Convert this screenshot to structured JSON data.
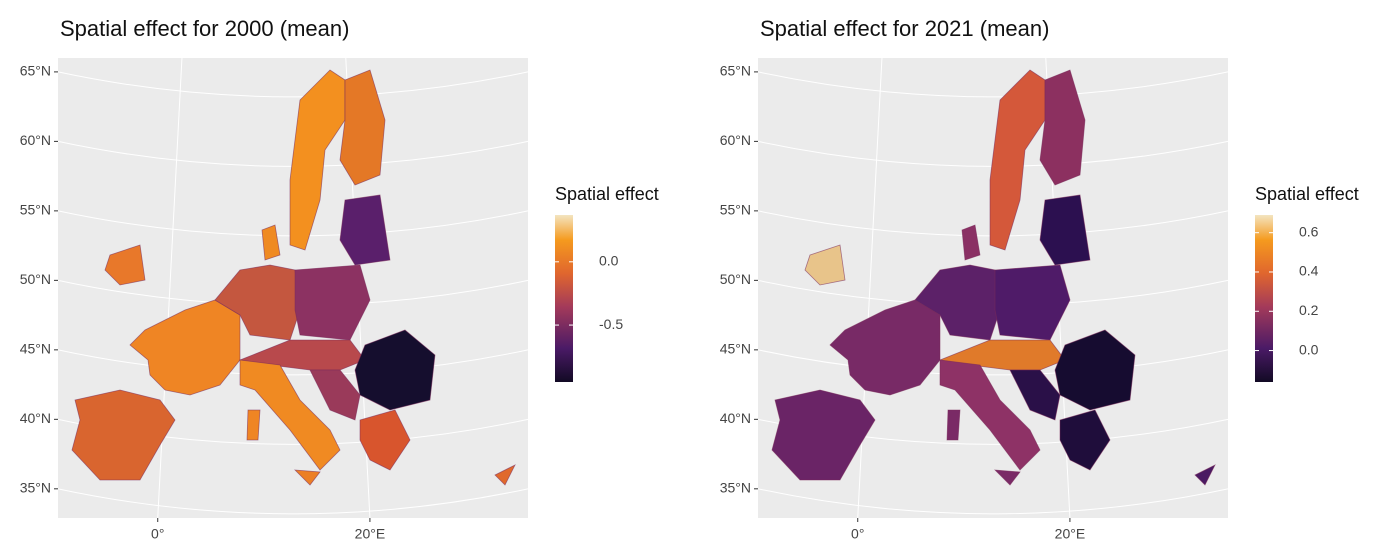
{
  "maps": [
    {
      "title": "Spatial effect for 2000 (mean)",
      "ylim": [
        32.9,
        66
      ],
      "xlim": [
        -9.4,
        34.9
      ],
      "yticks": [
        {
          "value": 65,
          "label": "65°N"
        },
        {
          "value": 60,
          "label": "60°N"
        },
        {
          "value": 55,
          "label": "55°N"
        },
        {
          "value": 50,
          "label": "50°N"
        },
        {
          "value": 45,
          "label": "45°N"
        },
        {
          "value": 40,
          "label": "40°N"
        },
        {
          "value": 35,
          "label": "35°N"
        }
      ],
      "xticks": [
        {
          "value": 0,
          "label": "0°"
        },
        {
          "value": 20,
          "label": "20°E"
        }
      ],
      "legend": {
        "title": "Spatial effect",
        "limits": [
          -0.95,
          0.37
        ],
        "ticks": [
          {
            "value": 0,
            "label": "0.0"
          },
          -0.5
        ]
      }
    },
    {
      "title": "Spatial effect for 2021 (mean)",
      "ylim": [
        32.9,
        66
      ],
      "xlim": [
        -9.4,
        34.9
      ],
      "yticks": [
        {
          "value": 65,
          "label": "65°N"
        },
        {
          "value": 60,
          "label": "60°N"
        },
        {
          "value": 55,
          "label": "55°N"
        },
        {
          "value": 50,
          "label": "50°N"
        },
        {
          "value": 45,
          "label": "45°N"
        },
        {
          "value": 40,
          "label": "40°N"
        },
        {
          "value": 35,
          "label": "35°N"
        }
      ],
      "xticks": [
        {
          "value": 0,
          "label": "0°"
        },
        {
          "value": 20,
          "label": "20°E"
        }
      ],
      "legend": {
        "title": "Spatial effect",
        "limits": [
          -0.16,
          0.69
        ],
        "ticks": [
          0.6,
          0.4,
          0.2,
          {
            "value": 0,
            "label": "0.0"
          }
        ]
      }
    }
  ]
}
